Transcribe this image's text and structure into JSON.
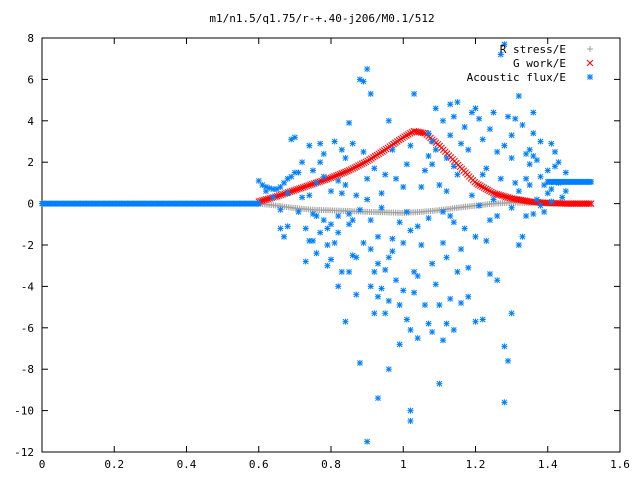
{
  "chart_data": {
    "type": "scatter",
    "title": "m1/n1.5/q1.75/r-+.40-j206/M0.1/512",
    "xlim": [
      0,
      1.6
    ],
    "ylim": [
      -12,
      8
    ],
    "xticks": [
      0,
      0.2,
      0.4,
      0.6,
      0.8,
      1,
      1.2,
      1.4,
      1.6
    ],
    "xtick_labels": [
      "0",
      "0.2",
      "0.4",
      "0.6",
      "0.8",
      "1",
      "1.2",
      "1.4",
      "1.6"
    ],
    "yticks": [
      -12,
      -10,
      -8,
      -6,
      -4,
      -2,
      0,
      2,
      4,
      6,
      8
    ],
    "ytick_labels": [
      "-12",
      "-10",
      "-8",
      "-6",
      "-4",
      "-2",
      "0",
      "2",
      "4",
      "6",
      "8"
    ],
    "grid": false,
    "legend_position": "top-right",
    "series": [
      {
        "name": "R stress/E",
        "marker": "+",
        "color": "#a0a0a0",
        "description_range": {
          "x_start": 0.6,
          "x_end": 1.52
        },
        "curve": [
          [
            0.6,
            0.0
          ],
          [
            0.65,
            -0.1
          ],
          [
            0.7,
            -0.22
          ],
          [
            0.75,
            -0.3
          ],
          [
            0.8,
            -0.33
          ],
          [
            0.85,
            -0.36
          ],
          [
            0.9,
            -0.4
          ],
          [
            0.95,
            -0.42
          ],
          [
            1.0,
            -0.45
          ],
          [
            1.05,
            -0.4
          ],
          [
            1.1,
            -0.32
          ],
          [
            1.15,
            -0.2
          ],
          [
            1.2,
            -0.1
          ],
          [
            1.25,
            0.0
          ],
          [
            1.3,
            0.05
          ],
          [
            1.35,
            0.03
          ],
          [
            1.4,
            0.01
          ],
          [
            1.45,
            0.0
          ],
          [
            1.52,
            0.0
          ]
        ]
      },
      {
        "name": "G work/E",
        "marker": "x",
        "color": "#ff0000",
        "curve": [
          [
            0.6,
            0.1
          ],
          [
            0.65,
            0.35
          ],
          [
            0.7,
            0.65
          ],
          [
            0.75,
            0.95
          ],
          [
            0.8,
            1.25
          ],
          [
            0.85,
            1.6
          ],
          [
            0.9,
            2.05
          ],
          [
            0.95,
            2.6
          ],
          [
            1.0,
            3.2
          ],
          [
            1.03,
            3.5
          ],
          [
            1.06,
            3.4
          ],
          [
            1.1,
            2.8
          ],
          [
            1.15,
            1.9
          ],
          [
            1.2,
            1.0
          ],
          [
            1.25,
            0.5
          ],
          [
            1.3,
            0.25
          ],
          [
            1.35,
            0.1
          ],
          [
            1.4,
            0.03
          ],
          [
            1.45,
            0.0
          ],
          [
            1.52,
            0.0
          ]
        ]
      },
      {
        "name": "Acoustic flux/E",
        "marker": "*",
        "color": "#0080ff",
        "line_segments": [
          [
            [
              0.0,
              0.0
            ],
            [
              0.6,
              0.0
            ]
          ],
          [
            [
              1.4,
              1.05
            ],
            [
              1.52,
              1.05
            ]
          ]
        ],
        "points": [
          [
            0.6,
            1.1
          ],
          [
            0.61,
            0.9
          ],
          [
            0.62,
            0.8
          ],
          [
            0.63,
            0.75
          ],
          [
            0.64,
            0.7
          ],
          [
            0.65,
            0.7
          ],
          [
            0.66,
            0.8
          ],
          [
            0.67,
            1.0
          ],
          [
            0.68,
            1.2
          ],
          [
            0.69,
            1.3
          ],
          [
            0.62,
            0.6
          ],
          [
            0.64,
            0.3
          ],
          [
            0.66,
            -0.3
          ],
          [
            0.68,
            0.5
          ],
          [
            0.7,
            1.5
          ],
          [
            0.71,
            -0.4
          ],
          [
            0.72,
            0.3
          ],
          [
            0.73,
            -1.2
          ],
          [
            0.74,
            -1.8
          ],
          [
            0.75,
            -0.5
          ],
          [
            0.76,
            1.0
          ],
          [
            0.77,
            2.0
          ],
          [
            0.78,
            -0.8
          ],
          [
            0.79,
            -2.0
          ],
          [
            0.8,
            0.6
          ],
          [
            0.81,
            3.0
          ],
          [
            0.82,
            -1.4
          ],
          [
            0.83,
            -3.3
          ],
          [
            0.84,
            0.9
          ],
          [
            0.85,
            -1.0
          ],
          [
            0.66,
            -1.2
          ],
          [
            0.67,
            -1.6
          ],
          [
            0.68,
            -1.1
          ],
          [
            0.69,
            3.1
          ],
          [
            0.7,
            3.2
          ],
          [
            0.71,
            1.5
          ],
          [
            0.72,
            2.0
          ],
          [
            0.73,
            -2.8
          ],
          [
            0.74,
            2.8
          ],
          [
            0.75,
            1.6
          ],
          [
            0.76,
            -2.4
          ],
          [
            0.77,
            2.9
          ],
          [
            0.78,
            1.3
          ],
          [
            0.79,
            -1.2
          ],
          [
            0.8,
            -1.0
          ],
          [
            0.82,
            -4.0
          ],
          [
            0.84,
            -5.7
          ],
          [
            0.85,
            -3.3
          ],
          [
            0.86,
            -2.5
          ],
          [
            0.87,
            -4.4
          ],
          [
            0.88,
            6.0
          ],
          [
            0.89,
            5.9
          ],
          [
            0.9,
            6.5
          ],
          [
            0.91,
            5.3
          ],
          [
            0.89,
            2.5
          ],
          [
            0.9,
            0.2
          ],
          [
            0.91,
            -2.2
          ],
          [
            0.92,
            -3.3
          ],
          [
            0.93,
            -4.5
          ],
          [
            0.94,
            -4.1
          ],
          [
            0.95,
            -5.3
          ],
          [
            0.96,
            -4.7
          ],
          [
            0.97,
            -2.3
          ],
          [
            0.98,
            -3.7
          ],
          [
            0.99,
            -4.9
          ],
          [
            1.0,
            -4.2
          ],
          [
            1.01,
            -5.6
          ],
          [
            1.02,
            -6.1
          ],
          [
            1.03,
            -4.3
          ],
          [
            1.04,
            -3.5
          ],
          [
            0.88,
            -7.7
          ],
          [
            0.9,
            -11.5
          ],
          [
            0.93,
            -9.4
          ],
          [
            0.96,
            -8.0
          ],
          [
            0.99,
            -6.8
          ],
          [
            1.02,
            -10.5
          ],
          [
            1.02,
            -10.0
          ],
          [
            1.04,
            -6.5
          ],
          [
            1.07,
            -5.8
          ],
          [
            1.08,
            -6.2
          ],
          [
            1.1,
            -8.7
          ],
          [
            1.11,
            -6.6
          ],
          [
            1.12,
            -5.8
          ],
          [
            1.14,
            -6.1
          ],
          [
            1.16,
            -4.8
          ],
          [
            1.18,
            -4.5
          ],
          [
            1.2,
            -5.7
          ],
          [
            1.22,
            -5.6
          ],
          [
            1.24,
            -3.4
          ],
          [
            1.26,
            -3.7
          ],
          [
            1.28,
            -6.9
          ],
          [
            1.29,
            -7.6
          ],
          [
            1.28,
            -9.6
          ],
          [
            1.3,
            -5.3
          ],
          [
            1.26,
            -0.6
          ],
          [
            1.27,
            1.2
          ],
          [
            1.28,
            2.8
          ],
          [
            1.3,
            3.3
          ],
          [
            1.31,
            4.1
          ],
          [
            1.32,
            5.2
          ],
          [
            1.33,
            3.8
          ],
          [
            1.34,
            2.4
          ],
          [
            1.35,
            1.9
          ],
          [
            1.36,
            3.4
          ],
          [
            1.37,
            2.1
          ],
          [
            1.38,
            1.3
          ],
          [
            1.39,
            0.9
          ],
          [
            1.4,
            1.6
          ],
          [
            1.41,
            0.7
          ],
          [
            1.42,
            1.8
          ],
          [
            1.43,
            1.0
          ],
          [
            1.44,
            0.3
          ],
          [
            1.45,
            1.5
          ],
          [
            1.38,
            3.0
          ],
          [
            1.36,
            2.3
          ],
          [
            1.34,
            1.2
          ],
          [
            1.32,
            0.6
          ],
          [
            1.3,
            -0.2
          ],
          [
            1.28,
            7.7
          ],
          [
            1.27,
            7.2
          ],
          [
            1.2,
            4.6
          ],
          [
            1.21,
            4.1
          ],
          [
            1.22,
            3.1
          ],
          [
            1.23,
            1.7
          ],
          [
            1.24,
            3.6
          ],
          [
            1.25,
            4.4
          ],
          [
            1.26,
            2.5
          ],
          [
            1.16,
            2.9
          ],
          [
            1.15,
            1.4
          ],
          [
            1.14,
            4.2
          ],
          [
            1.13,
            3.3
          ],
          [
            1.12,
            2.2
          ],
          [
            1.11,
            -0.4
          ],
          [
            1.1,
            0.9
          ],
          [
            1.09,
            4.6
          ],
          [
            1.08,
            3.0
          ],
          [
            1.07,
            2.3
          ],
          [
            1.06,
            1.6
          ],
          [
            1.05,
            0.8
          ],
          [
            1.04,
            -1.1
          ],
          [
            1.03,
            5.3
          ],
          [
            1.02,
            2.8
          ],
          [
            1.01,
            1.9
          ],
          [
            1.0,
            0.8
          ],
          [
            0.99,
            -0.9
          ],
          [
            0.98,
            1.2
          ],
          [
            0.97,
            2.6
          ],
          [
            0.96,
            4.0
          ],
          [
            0.95,
            1.4
          ],
          [
            0.94,
            0.5
          ],
          [
            0.93,
            -1.6
          ],
          [
            0.92,
            1.7
          ],
          [
            0.91,
            -0.8
          ],
          [
            0.9,
            1.2
          ],
          [
            0.89,
            -1.9
          ],
          [
            0.88,
            -0.3
          ],
          [
            0.87,
            0.4
          ],
          [
            0.86,
            2.9
          ],
          [
            0.85,
            3.9
          ],
          [
            0.84,
            2.2
          ],
          [
            0.83,
            2.6
          ],
          [
            0.82,
            1.1
          ],
          [
            0.81,
            -1.9
          ],
          [
            0.8,
            -2.7
          ],
          [
            0.79,
            -3.0
          ],
          [
            0.78,
            2.4
          ],
          [
            0.77,
            -1.4
          ],
          [
            0.76,
            -0.6
          ],
          [
            0.75,
            -1.8
          ],
          [
            0.74,
            0.4
          ],
          [
            1.08,
            -2.9
          ],
          [
            1.09,
            -3.9
          ],
          [
            1.1,
            -4.9
          ],
          [
            1.11,
            -1.9
          ],
          [
            1.12,
            -2.6
          ],
          [
            1.13,
            -4.6
          ],
          [
            1.14,
            -0.9
          ],
          [
            1.15,
            -3.3
          ],
          [
            1.16,
            -2.2
          ],
          [
            1.17,
            -1.2
          ],
          [
            1.18,
            -3.1
          ],
          [
            1.19,
            0.4
          ],
          [
            1.2,
            -1.6
          ],
          [
            1.21,
            -0.1
          ],
          [
            1.22,
            1.4
          ],
          [
            1.23,
            -1.8
          ],
          [
            1.24,
            -0.8
          ],
          [
            1.25,
            0.2
          ],
          [
            1.32,
            -2.0
          ],
          [
            1.33,
            -1.6
          ],
          [
            1.34,
            -0.6
          ],
          [
            1.35,
            0.9
          ],
          [
            1.36,
            -0.5
          ],
          [
            1.37,
            0.2
          ],
          [
            1.38,
            -0.1
          ],
          [
            1.39,
            -0.4
          ],
          [
            1.4,
            0.5
          ],
          [
            1.41,
            0.1
          ],
          [
            1.43,
            2.0
          ],
          [
            1.45,
            0.6
          ],
          [
            1.41,
            2.9
          ],
          [
            1.42,
            2.5
          ],
          [
            1.35,
            2.6
          ],
          [
            1.36,
            4.4
          ],
          [
            1.29,
            4.2
          ],
          [
            1.3,
            2.2
          ],
          [
            1.31,
            1.0
          ],
          [
            1.02,
            -1.3
          ],
          [
            0.97,
            -1.7
          ],
          [
            0.96,
            -2.6
          ],
          [
            0.95,
            -3.2
          ],
          [
            0.94,
            -0.2
          ],
          [
            0.93,
            -2.9
          ],
          [
            0.92,
            -5.3
          ],
          [
            0.91,
            -4.0
          ],
          [
            0.87,
            -2.6
          ],
          [
            0.86,
            -0.8
          ],
          [
            0.85,
            -0.5
          ],
          [
            0.83,
            0.5
          ],
          [
            0.82,
            -0.6
          ],
          [
            1.06,
            -4.9
          ],
          [
            1.07,
            -0.7
          ],
          [
            1.05,
            -2.0
          ],
          [
            1.03,
            -3.3
          ],
          [
            1.01,
            -0.4
          ],
          [
            1.0,
            -1.9
          ],
          [
            1.12,
            0.6
          ],
          [
            1.13,
            -0.6
          ],
          [
            1.14,
            1.8
          ],
          [
            1.17,
            3.7
          ],
          [
            1.18,
            2.6
          ],
          [
            1.19,
            4.4
          ],
          [
            1.15,
            4.9
          ],
          [
            1.13,
            4.8
          ],
          [
            1.11,
            4.0
          ],
          [
            1.09,
            2.6
          ],
          [
            1.08,
            1.9
          ],
          [
            1.07,
            3.4
          ]
        ]
      }
    ]
  }
}
